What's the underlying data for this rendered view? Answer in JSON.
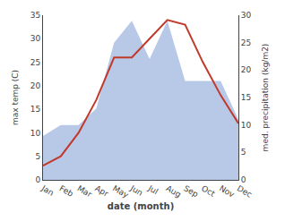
{
  "chart_data": {
    "type": "line",
    "categories": [
      "Jan",
      "Feb",
      "Mar",
      "Apr",
      "May",
      "Jun",
      "Jul",
      "Aug",
      "Sep",
      "Oct",
      "Nov",
      "Dec"
    ],
    "series": [
      {
        "type": "area",
        "color": "#b8c9e8",
        "axis": "y2",
        "values": [
          8,
          10,
          10,
          13,
          25,
          29,
          22,
          29,
          18,
          18,
          18,
          11
        ]
      },
      {
        "type": "line",
        "color": "#c0392b",
        "values": [
          3,
          5,
          10,
          17,
          26,
          26,
          30,
          34,
          33,
          25,
          18,
          12
        ]
      }
    ],
    "xlabel": "date (month)",
    "ylabel": "max temp (C)",
    "y2label": "med. precipitation (kg/m2)",
    "ylim": [
      0,
      35
    ],
    "yticks": [
      0,
      5,
      10,
      15,
      20,
      25,
      30,
      35
    ],
    "y2lim": [
      0,
      30
    ],
    "y2ticks": [
      0,
      5,
      10,
      15,
      20,
      25,
      30
    ],
    "grid": false
  }
}
